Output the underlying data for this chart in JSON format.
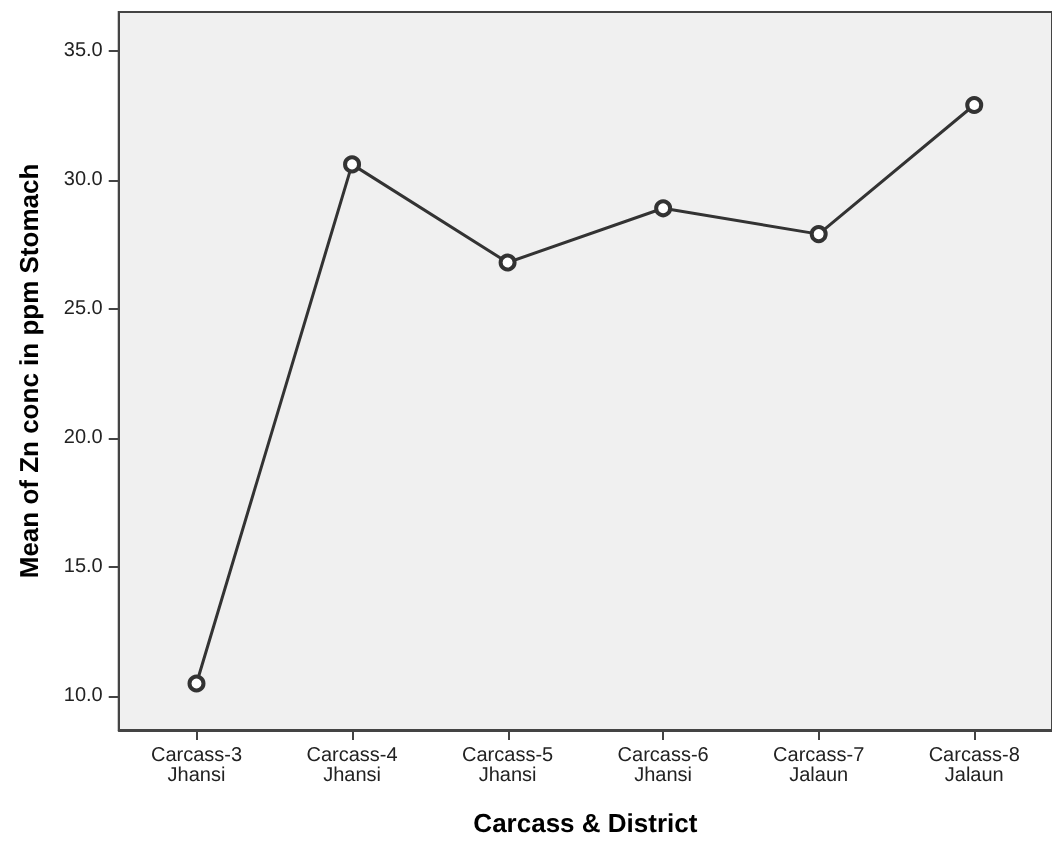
{
  "chart_data": {
    "type": "line",
    "xlabel": "Carcass & District",
    "ylabel": "Mean of Zn conc in ppm Stomach",
    "categories": [
      "Carcass-3\nJhansi",
      "Carcass-4\nJhansi",
      "Carcass-5\nJhansi",
      "Carcass-6\nJhansi",
      "Carcass-7\nJalaun",
      "Carcass-8\nJalaun"
    ],
    "series": [
      {
        "color": "#333333",
        "values": [
          10.5,
          30.6,
          26.8,
          28.9,
          27.9,
          32.9
        ]
      }
    ],
    "ylim": [
      8.7,
      36.5
    ],
    "yticks": [
      {
        "value": 10,
        "label": "10.0"
      },
      {
        "value": 15,
        "label": "15.0"
      },
      {
        "value": 20,
        "label": "20.0"
      },
      {
        "value": 25,
        "label": "25.0"
      },
      {
        "value": 30,
        "label": "30.0"
      },
      {
        "value": 35,
        "label": "35.0"
      }
    ],
    "grid": false,
    "marker": "circle",
    "line_style": "solid"
  }
}
